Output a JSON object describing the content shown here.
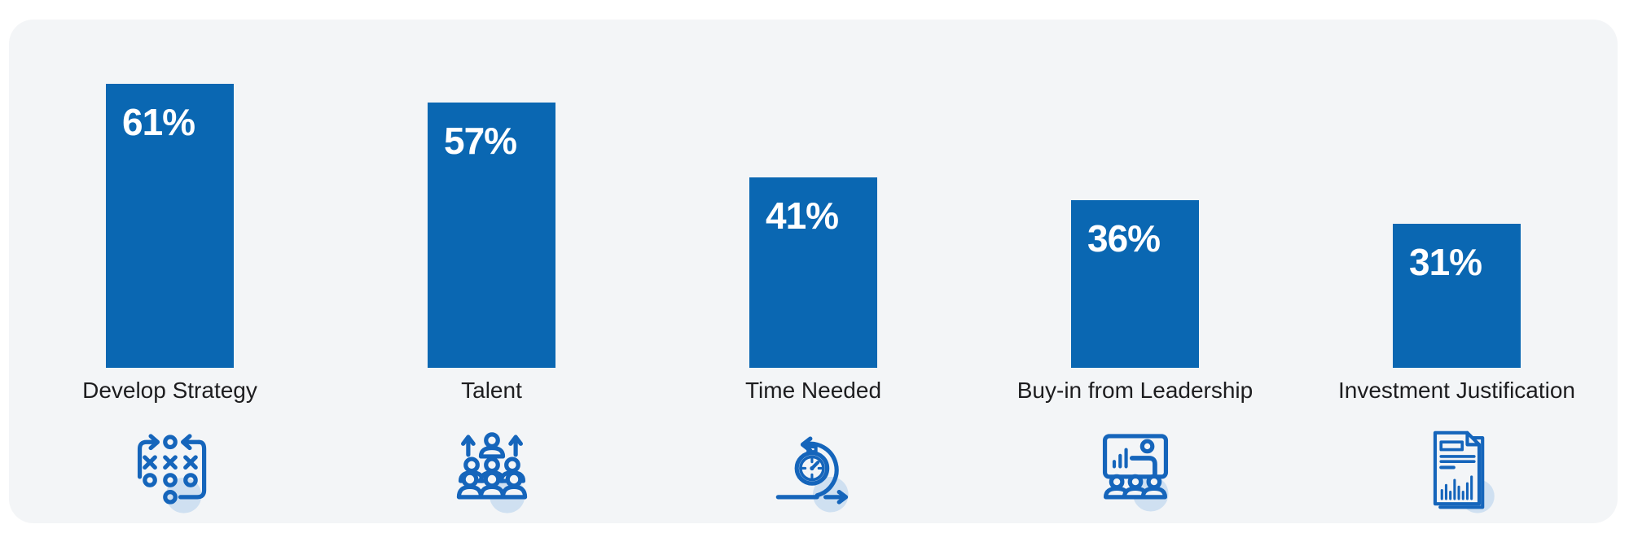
{
  "chart_data": {
    "type": "bar",
    "categories": [
      "Develop Strategy",
      "Talent",
      "Time Needed",
      "Buy-in from Leadership",
      "Investment Justification"
    ],
    "values": [
      61,
      57,
      41,
      36,
      31
    ],
    "data_labels": [
      "61%",
      "57%",
      "41%",
      "36%",
      "31%"
    ],
    "title": "",
    "xlabel": "",
    "ylabel": "",
    "ylim": [
      0,
      75
    ],
    "grid": false,
    "legend": false,
    "axes_visible": false,
    "value_label_position": "inside-top-left",
    "icons": [
      "strategy-tactics-icon",
      "talent-growth-icon",
      "agile-time-icon",
      "leadership-presentation-icon",
      "investment-report-icon"
    ],
    "colors": {
      "bar": "#0a67b2",
      "icon": "#1565bb",
      "circle": "#cfe0f1",
      "label": "#1d1d1f",
      "value": "#ffffff",
      "card": "#f3f5f7",
      "page": "#ffffff"
    }
  }
}
